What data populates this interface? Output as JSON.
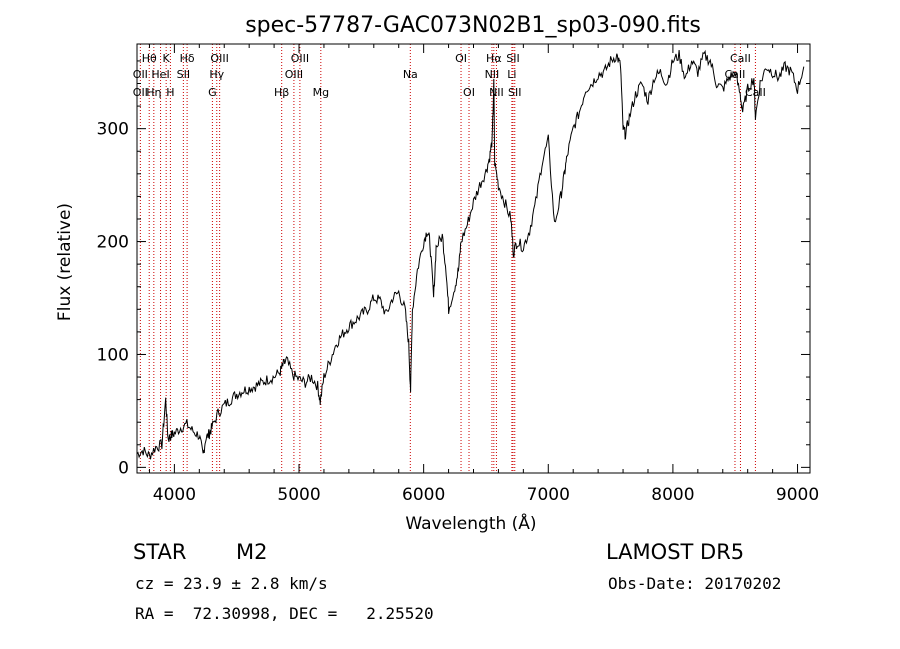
{
  "chart_data": {
    "type": "line",
    "title": "spec-57787-GAC073N02B1_sp03-090.fits",
    "xlabel": "Wavelength (Å)",
    "ylabel": "Flux (relative)",
    "xlim": [
      3700,
      9100
    ],
    "ylim": [
      -5,
      375
    ],
    "xticks": [
      4000,
      5000,
      6000,
      7000,
      8000,
      9000
    ],
    "yticks": [
      0,
      100,
      200,
      300
    ],
    "grid": false,
    "line_color": "#000000",
    "marker_color": "#cc0000",
    "series": [
      {
        "x": [
          3700,
          3750,
          3800,
          3850,
          3900,
          3930,
          3950,
          3970,
          4000,
          4050,
          4100,
          4150,
          4200,
          4230,
          4250,
          4280,
          4300,
          4350,
          4400,
          4450,
          4500,
          4550,
          4600,
          4650,
          4700,
          4750,
          4800,
          4850,
          4870,
          4900,
          4950,
          5000,
          5050,
          5100,
          5150,
          5170,
          5200,
          5250,
          5300,
          5350,
          5400,
          5450,
          5500,
          5550,
          5600,
          5650,
          5700,
          5750,
          5800,
          5850,
          5880,
          5895,
          5910,
          5950,
          6000,
          6030,
          6050,
          6080,
          6100,
          6150,
          6180,
          6200,
          6250,
          6280,
          6300,
          6350,
          6400,
          6450,
          6500,
          6530,
          6550,
          6563,
          6570,
          6600,
          6650,
          6700,
          6720,
          6750,
          6800,
          6850,
          6900,
          6950,
          7000,
          7050,
          7100,
          7130,
          7150,
          7200,
          7250,
          7300,
          7350,
          7400,
          7450,
          7500,
          7550,
          7580,
          7600,
          7620,
          7650,
          7700,
          7750,
          7800,
          7850,
          7900,
          7950,
          8000,
          8050,
          8100,
          8150,
          8200,
          8250,
          8300,
          8350,
          8400,
          8450,
          8500,
          8540,
          8560,
          8600,
          8650,
          8662,
          8700,
          8750,
          8800,
          8850,
          8900,
          8950,
          9000,
          9050
        ],
        "y": [
          12,
          15,
          10,
          18,
          20,
          60,
          25,
          28,
          30,
          35,
          38,
          32,
          28,
          10,
          25,
          30,
          35,
          48,
          55,
          60,
          65,
          68,
          70,
          72,
          75,
          78,
          80,
          85,
          90,
          95,
          82,
          78,
          75,
          80,
          72,
          58,
          80,
          95,
          110,
          118,
          125,
          130,
          135,
          140,
          150,
          148,
          135,
          150,
          155,
          140,
          110,
          68,
          140,
          175,
          200,
          210,
          200,
          150,
          195,
          205,
          175,
          140,
          160,
          175,
          200,
          215,
          235,
          250,
          262,
          275,
          290,
          340,
          270,
          250,
          235,
          220,
          190,
          200,
          195,
          210,
          235,
          270,
          290,
          215,
          240,
          260,
          275,
          300,
          315,
          335,
          340,
          348,
          350,
          360,
          365,
          355,
          300,
          295,
          310,
          330,
          340,
          325,
          345,
          350,
          340,
          360,
          365,
          345,
          360,
          350,
          365,
          360,
          340,
          335,
          345,
          350,
          330,
          315,
          335,
          345,
          310,
          340,
          355,
          350,
          345,
          355,
          350,
          335,
          355
        ]
      }
    ],
    "lines": [
      {
        "label": "Hθ",
        "x": 3798,
        "row": 1
      },
      {
        "label": "OII",
        "x": 3727,
        "row": 2
      },
      {
        "label": "OII",
        "x": 3727,
        "row": 3
      },
      {
        "label": "Hη",
        "x": 3835,
        "row": 3
      },
      {
        "label": "K",
        "x": 3934,
        "row": 1
      },
      {
        "label": "HeI",
        "x": 3889,
        "row": 2
      },
      {
        "label": "H",
        "x": 3968,
        "row": 3
      },
      {
        "label": "Hδ",
        "x": 4102,
        "row": 1
      },
      {
        "label": "SII",
        "x": 4072,
        "row": 2
      },
      {
        "label": "OIII",
        "x": 4363,
        "row": 1
      },
      {
        "label": "Hγ",
        "x": 4340,
        "row": 2
      },
      {
        "label": "G",
        "x": 4305,
        "row": 3
      },
      {
        "label": "Hβ",
        "x": 4861,
        "row": 3
      },
      {
        "label": "OIII",
        "x": 5007,
        "row": 1
      },
      {
        "label": "OIII",
        "x": 4959,
        "row": 2
      },
      {
        "label": "Mg",
        "x": 5175,
        "row": 3
      },
      {
        "label": "Na",
        "x": 5893,
        "row": 2
      },
      {
        "label": "OI",
        "x": 6300,
        "row": 1
      },
      {
        "label": "OI",
        "x": 6364,
        "row": 3
      },
      {
        "label": "Hα",
        "x": 6563,
        "row": 1
      },
      {
        "label": "NII",
        "x": 6548,
        "row": 2
      },
      {
        "label": "NII",
        "x": 6584,
        "row": 3
      },
      {
        "label": "SII",
        "x": 6717,
        "row": 1
      },
      {
        "label": "Li",
        "x": 6708,
        "row": 2
      },
      {
        "label": "SII",
        "x": 6731,
        "row": 3
      },
      {
        "label": "CaII",
        "x": 8542,
        "row": 1
      },
      {
        "label": "CaII",
        "x": 8498,
        "row": 2
      },
      {
        "label": "CaII",
        "x": 8662,
        "row": 3
      }
    ]
  },
  "info": {
    "class": "STAR",
    "subclass": "M2",
    "survey": "LAMOST DR5",
    "cz": "cz = 23.9 ± 2.8 km/s",
    "obs_date": "Obs-Date: 20170202",
    "ra_dec": "RA =  72.30998, DEC =   2.25520"
  }
}
